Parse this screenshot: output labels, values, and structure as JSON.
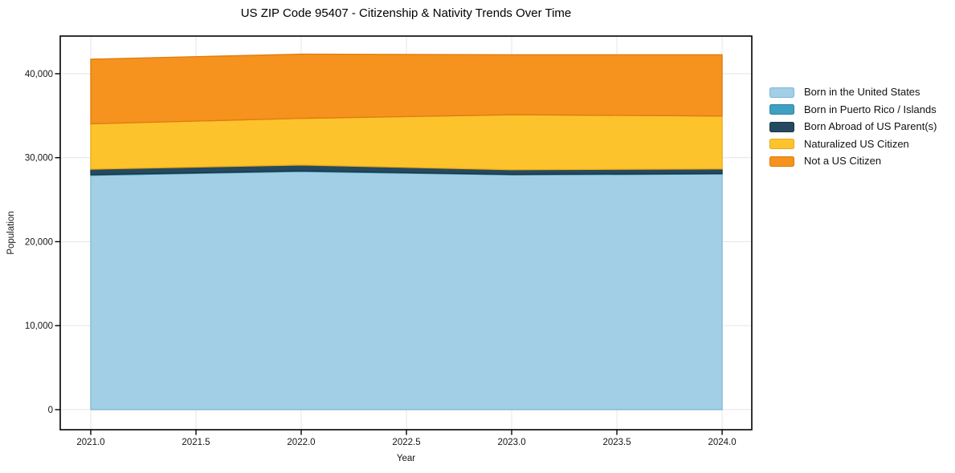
{
  "chart_data": {
    "type": "area",
    "stacked": true,
    "title": "US ZIP Code 95407 - Citizenship & Nativity Trends Over Time",
    "xlabel": "Year",
    "ylabel": "Population",
    "x": [
      2021,
      2022,
      2023,
      2024
    ],
    "series": [
      {
        "name": "Born in the United States",
        "color": "#a2cfe6",
        "edge_color": "#7db8d6",
        "values": [
          27900,
          28350,
          27950,
          28050
        ]
      },
      {
        "name": "Born in Puerto Rico / Islands",
        "color": "#3ea0c2",
        "edge_color": "#32839f",
        "values": [
          80,
          80,
          60,
          60
        ]
      },
      {
        "name": "Born Abroad of US Parent(s)",
        "color": "#254a5f",
        "edge_color": "#1a3543",
        "values": [
          650,
          700,
          550,
          550
        ]
      },
      {
        "name": "Naturalized US Citizen",
        "color": "#fdc32d",
        "edge_color": "#eaa814",
        "values": [
          5400,
          5550,
          6550,
          6300
        ]
      },
      {
        "name": "Not a US Citizen",
        "color": "#f6921e",
        "edge_color": "#dd7c0d",
        "values": [
          7700,
          7650,
          7150,
          7300
        ]
      }
    ],
    "totals": [
      41730,
      42330,
      42260,
      42260
    ],
    "xticks": [
      2021.0,
      2021.5,
      2022.0,
      2022.5,
      2023.0,
      2023.5,
      2024.0
    ],
    "xtick_labels": [
      "2021.0",
      "2021.5",
      "2022.0",
      "2022.5",
      "2023.0",
      "2023.5",
      "2024.0"
    ],
    "yticks": [
      0,
      10000,
      20000,
      30000,
      40000
    ],
    "ytick_labels": [
      "0",
      "10,000",
      "20,000",
      "30,000",
      "40,000"
    ],
    "xlim": [
      2020.855,
      2024.141
    ],
    "ylim": [
      -2390,
      44480
    ],
    "grid": true,
    "legend_position": "right-outside",
    "grid_color": "#e8e8e8",
    "axis_color": "#000000",
    "tick_label_color": "#1a1a1a",
    "background_color": "#ffffff"
  }
}
